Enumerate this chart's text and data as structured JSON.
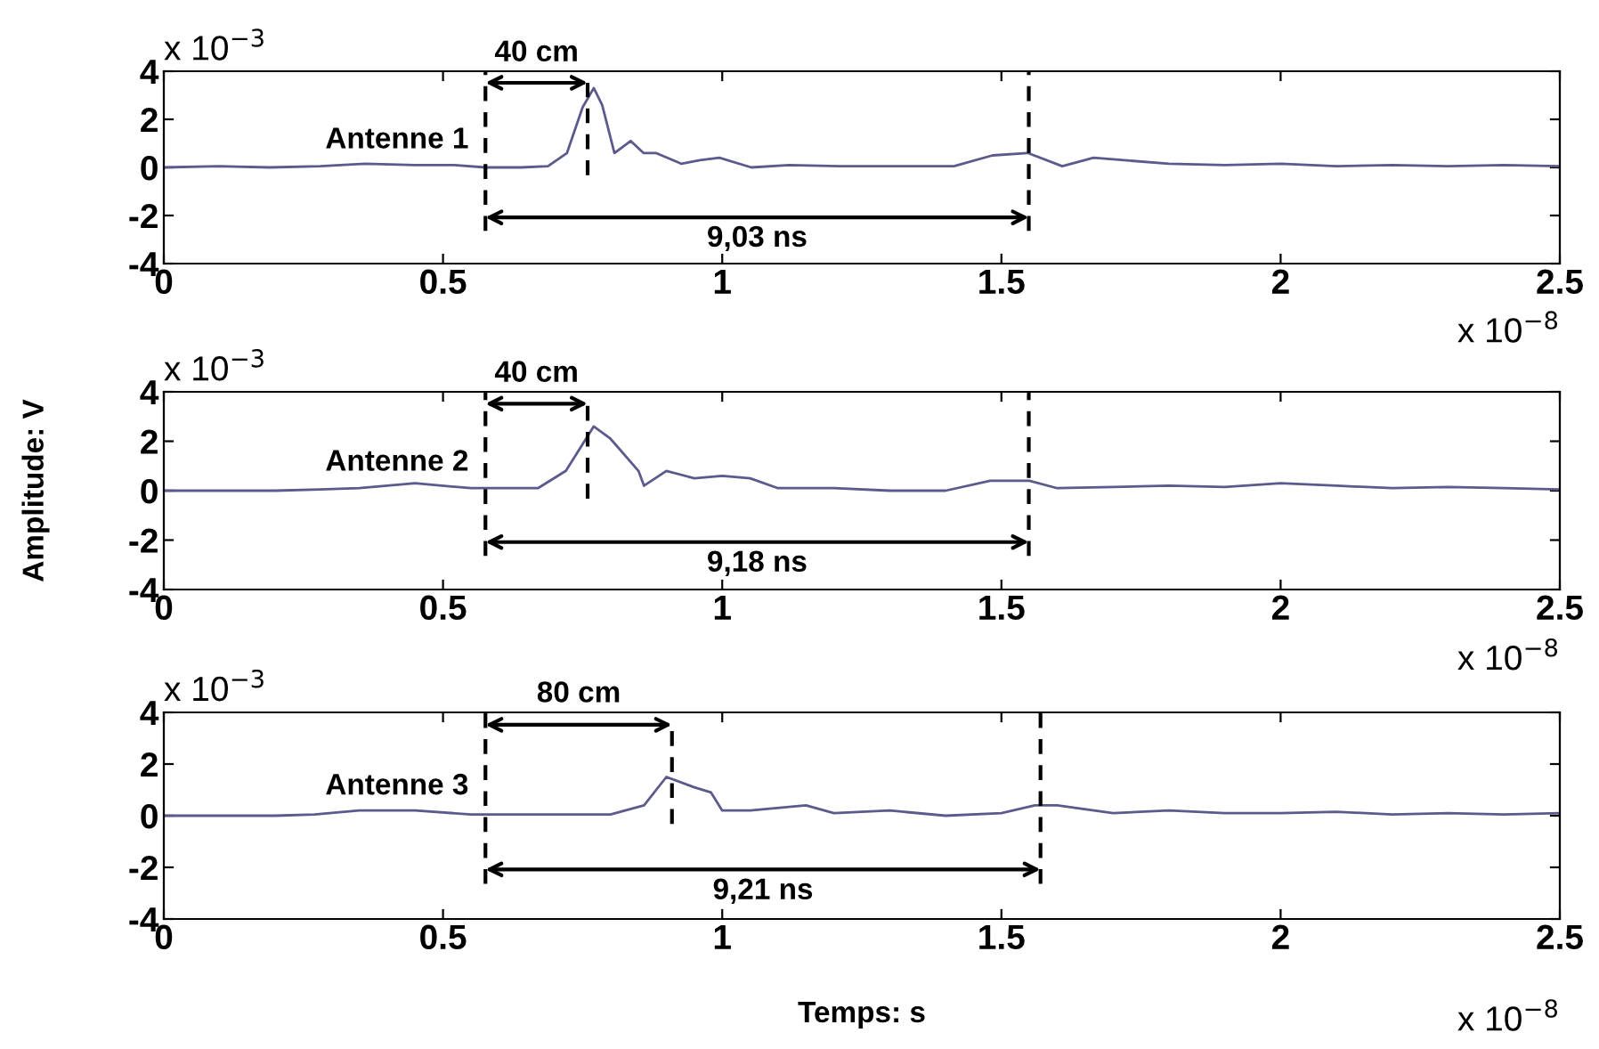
{
  "chart_data": [
    {
      "type": "line",
      "annotations": [
        "x 10$^{−3}$",
        "x 10$^{−8}$",
        "Antenne 1",
        "40 cm",
        "9,03 ns"
      ],
      "series": [
        {
          "color": "#5a5a8c",
          "x": [
            0,
            0.1,
            0.19,
            0.28,
            0.36,
            0.45,
            0.52,
            0.576,
            0.64,
            0.688,
            0.722,
            0.75,
            0.77,
            0.785,
            0.807,
            0.836,
            0.859,
            0.881,
            0.927,
            0.96,
            0.995,
            1.052,
            1.12,
            1.21,
            1.3,
            1.415,
            1.484,
            1.547,
            1.609,
            1.665,
            1.72,
            1.8,
            1.9,
            2.0,
            2.1,
            2.2,
            2.3,
            2.4,
            2.5
          ],
          "values": [
            0,
            0.05,
            0,
            0.05,
            0.15,
            0.1,
            0.1,
            0,
            0,
            0.05,
            0.6,
            2.5,
            3.3,
            2.6,
            0.6,
            1.1,
            0.6,
            0.6,
            0.15,
            0.3,
            0.4,
            0,
            0.1,
            0.05,
            0.05,
            0.05,
            0.5,
            0.6,
            0.05,
            0.4,
            0.3,
            0.15,
            0.1,
            0.15,
            0.05,
            0.1,
            0.05,
            0.1,
            0.05
          ]
        }
      ],
      "xlim": [
        0,
        2.5
      ],
      "xticks": [
        0,
        0.5,
        1,
        1.5,
        2,
        2.5
      ],
      "ylim": [
        -4,
        4
      ],
      "yticks": [
        -4,
        -2,
        0,
        2,
        4
      ],
      "grid": false,
      "legend": false,
      "ref_lines": [
        {
          "axis": "x",
          "value": 0.576,
          "color": "#000000",
          "line_style": "dashed"
        },
        {
          "axis": "x",
          "value": 0.759,
          "color": "#000000",
          "line_style": "dashed"
        },
        {
          "axis": "x",
          "value": 1.549,
          "color": "#000000",
          "line_style": "dashed"
        }
      ]
    },
    {
      "type": "line",
      "ylabel": "Amplitude: V",
      "annotations": [
        "x 10$^{−3}$",
        "x 10$^{−8}$",
        "Antenne 2",
        "40 cm",
        "9,18 ns"
      ],
      "series": [
        {
          "color": "#5a5a8c",
          "x": [
            0,
            0.1,
            0.2,
            0.28,
            0.35,
            0.45,
            0.55,
            0.58,
            0.67,
            0.72,
            0.77,
            0.8,
            0.85,
            0.86,
            0.9,
            0.95,
            1.0,
            1.05,
            1.1,
            1.2,
            1.3,
            1.4,
            1.48,
            1.55,
            1.6,
            1.7,
            1.8,
            1.9,
            2.0,
            2.1,
            2.2,
            2.3,
            2.4,
            2.5
          ],
          "values": [
            0,
            0,
            0,
            0.05,
            0.1,
            0.3,
            0.1,
            0.1,
            0.1,
            0.8,
            2.6,
            2.1,
            0.8,
            0.2,
            0.8,
            0.5,
            0.6,
            0.5,
            0.1,
            0.1,
            0,
            0,
            0.4,
            0.4,
            0.1,
            0.15,
            0.2,
            0.15,
            0.3,
            0.2,
            0.1,
            0.15,
            0.1,
            0.05
          ]
        }
      ],
      "xlim": [
        0,
        2.5
      ],
      "xticks": [
        0,
        0.5,
        1,
        1.5,
        2,
        2.5
      ],
      "ylim": [
        -4,
        4
      ],
      "yticks": [
        -4,
        -2,
        0,
        2,
        4
      ],
      "grid": false,
      "legend": false,
      "ref_lines": [
        {
          "axis": "x",
          "value": 0.576,
          "color": "#000000",
          "line_style": "dashed"
        },
        {
          "axis": "x",
          "value": 0.759,
          "color": "#000000",
          "line_style": "dashed"
        },
        {
          "axis": "x",
          "value": 1.549,
          "color": "#000000",
          "line_style": "dashed"
        }
      ]
    },
    {
      "type": "line",
      "xlabel": "Temps: s",
      "annotations": [
        "x 10$^{−3}$",
        "x 10$^{−8}$",
        "Antenne 3",
        "80 cm",
        "9,21 ns"
      ],
      "series": [
        {
          "color": "#5a5a8c",
          "x": [
            0,
            0.1,
            0.2,
            0.27,
            0.35,
            0.45,
            0.55,
            0.65,
            0.8,
            0.86,
            0.9,
            0.95,
            0.98,
            1.0,
            1.05,
            1.15,
            1.2,
            1.3,
            1.4,
            1.5,
            1.56,
            1.6,
            1.7,
            1.8,
            1.9,
            2.0,
            2.1,
            2.2,
            2.3,
            2.4,
            2.5
          ],
          "values": [
            0,
            0,
            0,
            0.05,
            0.2,
            0.2,
            0.05,
            0.05,
            0.05,
            0.4,
            1.5,
            1.1,
            0.9,
            0.2,
            0.2,
            0.4,
            0.1,
            0.2,
            0,
            0.1,
            0.4,
            0.4,
            0.1,
            0.2,
            0.1,
            0.1,
            0.15,
            0.05,
            0.1,
            0.05,
            0.1
          ]
        }
      ],
      "xlim": [
        0,
        2.5
      ],
      "xticks": [
        0,
        0.5,
        1,
        1.5,
        2,
        2.5
      ],
      "ylim": [
        -4,
        4
      ],
      "yticks": [
        -4,
        -2,
        0,
        2,
        4
      ],
      "grid": false,
      "legend": false,
      "ref_lines": [
        {
          "axis": "x",
          "value": 0.576,
          "color": "#000000",
          "line_style": "dashed"
        },
        {
          "axis": "x",
          "value": 0.91,
          "color": "#000000",
          "line_style": "dashed"
        },
        {
          "axis": "x",
          "value": 1.57,
          "color": "#000000",
          "line_style": "dashed"
        }
      ]
    }
  ]
}
